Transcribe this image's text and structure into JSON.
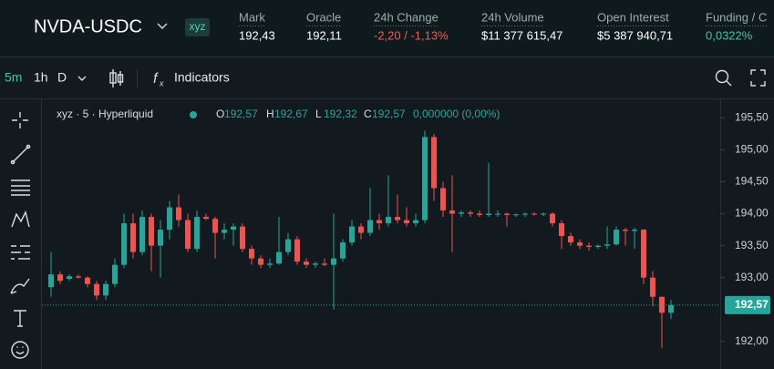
{
  "header": {
    "symbol": "NVDA-USDC",
    "badge": "xyz",
    "stats": [
      {
        "label": "Mark",
        "value": "192,43"
      },
      {
        "label": "Oracle",
        "value": "192,11"
      },
      {
        "label": "24h Change",
        "value": "-2,20 / -1,13%"
      },
      {
        "label": "24h Volume",
        "value": "$11 377 615,47"
      },
      {
        "label": "Open Interest",
        "value": "$5 387 940,71"
      },
      {
        "label": "Funding / C",
        "value": "0,0322%"
      }
    ]
  },
  "toolbar": {
    "intervals": [
      "5m",
      "1h",
      "D"
    ],
    "indicators": "Indicators"
  },
  "chart": {
    "type": "candlestick",
    "legend": {
      "source": "xyz · 5 · Hyperliquid",
      "o_label": "O",
      "o_value": "192,57",
      "h_label": "H",
      "h_value": "192,67",
      "l_label": "L",
      "l_value": "192,32",
      "c_label": "C",
      "c_value": "192,57",
      "change": "0,000000 (0,00%)"
    },
    "up_color": "#26a69a",
    "down_color": "#ef5350",
    "ylim": [
      191.57,
      195.79
    ],
    "yticks": [
      {
        "value": 195.5,
        "label": "195,50"
      },
      {
        "value": 195,
        "label": "195,00"
      },
      {
        "value": 194.5,
        "label": "194,50"
      },
      {
        "value": 194,
        "label": "194,00"
      },
      {
        "value": 193.5,
        "label": "193,50"
      },
      {
        "value": 193,
        "label": "193,00"
      },
      {
        "value": 192,
        "label": "192,00"
      }
    ],
    "last_price": {
      "value": 192.57,
      "label": "192,57"
    },
    "open": [
      192.85,
      193.05,
      192.98,
      193.02,
      193.0,
      192.9,
      192.72,
      192.9,
      193.2,
      193.85,
      193.4,
      193.95,
      193.5,
      193.75,
      194.1,
      193.9,
      193.45,
      193.95,
      193.92,
      193.7,
      193.75,
      193.8,
      193.45,
      193.3,
      193.2,
      193.22,
      193.4,
      193.6,
      193.25,
      193.2,
      193.22,
      193.2,
      193.3,
      193.55,
      193.8,
      193.7,
      193.9,
      193.85,
      193.95,
      193.9,
      193.85,
      193.9,
      195.2,
      194.4,
      194.05,
      194.0,
      194.02,
      194.0,
      193.98,
      194.0,
      194.0,
      193.98,
      193.99,
      194.0,
      193.99,
      194.0,
      193.85,
      193.65,
      193.55,
      193.5,
      193.48,
      193.5,
      193.52,
      193.75,
      193.73,
      193.75,
      193.0,
      192.7,
      192.45
    ],
    "high": [
      193.4,
      193.1,
      193.05,
      193.05,
      193.02,
      192.95,
      192.95,
      193.3,
      194.0,
      194.0,
      194.05,
      194.0,
      193.9,
      194.2,
      194.3,
      194.0,
      194.05,
      194.0,
      193.95,
      193.85,
      193.85,
      193.85,
      193.5,
      193.35,
      193.3,
      193.95,
      193.7,
      193.65,
      193.3,
      193.25,
      193.3,
      194.0,
      193.6,
      193.9,
      193.85,
      194.4,
      194.0,
      194.6,
      194.3,
      194.1,
      194.0,
      195.3,
      195.25,
      194.5,
      194.6,
      194.05,
      194.05,
      194.05,
      194.8,
      194.05,
      194.02,
      194.0,
      194.02,
      194.02,
      194.02,
      194.02,
      193.9,
      193.7,
      193.6,
      193.55,
      193.52,
      193.8,
      193.8,
      193.78,
      193.78,
      193.76,
      193.1,
      192.7,
      192.65
    ],
    "low": [
      192.7,
      192.9,
      192.95,
      192.98,
      192.85,
      192.65,
      192.65,
      192.85,
      193.15,
      193.3,
      193.35,
      193.1,
      193.0,
      193.6,
      193.8,
      193.4,
      193.4,
      193.9,
      193.3,
      193.6,
      193.5,
      193.4,
      193.2,
      193.15,
      193.15,
      193.2,
      193.35,
      193.2,
      193.15,
      193.15,
      193.18,
      192.5,
      193.25,
      193.5,
      193.6,
      193.65,
      193.75,
      193.8,
      193.85,
      193.8,
      193.8,
      193.85,
      194.2,
      193.95,
      193.4,
      193.95,
      193.95,
      193.95,
      193.95,
      193.95,
      193.8,
      193.95,
      193.95,
      193.97,
      193.96,
      193.8,
      193.45,
      193.5,
      193.45,
      193.42,
      193.45,
      193.45,
      193.5,
      193.5,
      193.45,
      192.9,
      192.55,
      191.9,
      192.35
    ],
    "close": [
      193.05,
      192.95,
      193.02,
      193.0,
      192.9,
      192.72,
      192.9,
      193.2,
      193.85,
      193.4,
      193.95,
      193.5,
      193.75,
      194.1,
      193.9,
      193.45,
      193.95,
      193.92,
      193.7,
      193.75,
      193.8,
      193.45,
      193.3,
      193.2,
      193.22,
      193.4,
      193.6,
      193.25,
      193.2,
      193.22,
      193.2,
      193.3,
      193.55,
      193.8,
      193.7,
      193.9,
      193.85,
      193.95,
      193.9,
      193.85,
      193.9,
      195.2,
      194.4,
      194.05,
      194.0,
      194.02,
      194.0,
      193.98,
      194.0,
      194.0,
      193.98,
      193.99,
      194.0,
      193.99,
      194.0,
      193.85,
      193.65,
      193.55,
      193.5,
      193.48,
      193.5,
      193.52,
      193.75,
      193.73,
      193.75,
      193.0,
      192.7,
      192.45,
      192.57
    ]
  }
}
